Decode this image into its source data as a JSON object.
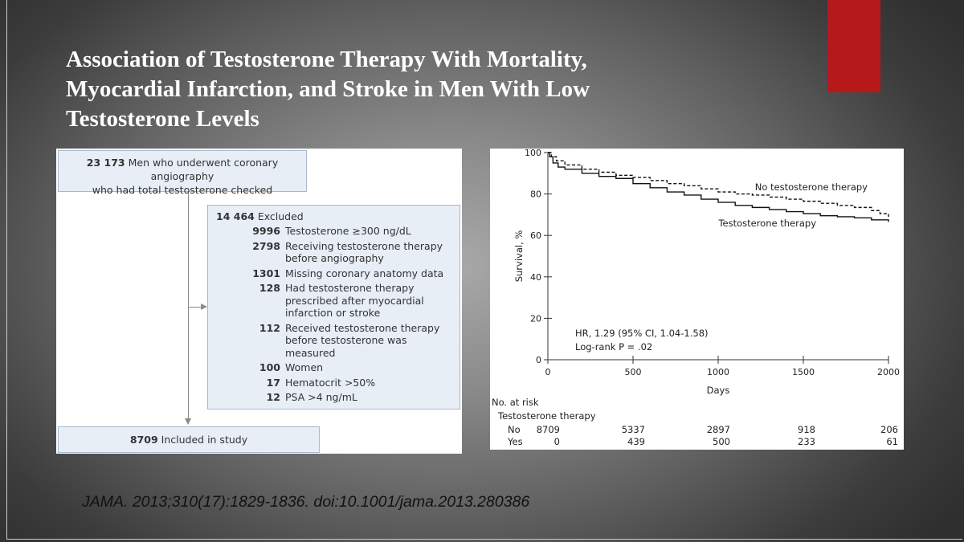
{
  "slide": {
    "title_lines": [
      "Association of Testosterone Therapy With Mortality,",
      "Myocardial Infarction, and Stroke in Men With Low",
      "Testosterone Levels"
    ],
    "accent_color": "#b5191a",
    "citation": "JAMA. 2013;310(17):1829-1836. doi:10.1001/jama.2013.280386"
  },
  "flow": {
    "top_box": {
      "count": "23 173",
      "line1": "Men who underwent coronary angiography",
      "line2": "who had total testosterone checked"
    },
    "excluded": {
      "count": "14 464",
      "label": "Excluded",
      "items": [
        {
          "n": "9996",
          "text": "Testosterone ≥300 ng/dL"
        },
        {
          "n": "2798",
          "text": "Receiving testosterone therapy before angiography"
        },
        {
          "n": "1301",
          "text": "Missing coronary anatomy data"
        },
        {
          "n": "128",
          "text": "Had testosterone therapy prescribed after myocardial infarction or stroke"
        },
        {
          "n": "112",
          "text": "Received testosterone therapy before testosterone was measured"
        },
        {
          "n": "100",
          "text": "Women"
        },
        {
          "n": "17",
          "text": "Hematocrit >50%"
        },
        {
          "n": "12",
          "text": "PSA >4 ng/mL"
        }
      ]
    },
    "included": {
      "count": "8709",
      "label": "Included in study"
    },
    "box_fill": "#e7eef6"
  },
  "chart_data": {
    "type": "line",
    "title": "",
    "xlabel": "Days",
    "ylabel": "Survival, %",
    "xlim": [
      0,
      2000
    ],
    "ylim": [
      0,
      100
    ],
    "x_ticks": [
      0,
      500,
      1000,
      1500,
      2000
    ],
    "y_ticks": [
      0,
      20,
      40,
      60,
      80,
      100
    ],
    "series": [
      {
        "name": "No testosterone therapy",
        "style": "dashed",
        "x": [
          0,
          20,
          50,
          100,
          200,
          300,
          400,
          500,
          600,
          700,
          800,
          900,
          1000,
          1100,
          1200,
          1300,
          1400,
          1500,
          1600,
          1700,
          1800,
          1900,
          1950,
          2000
        ],
        "y": [
          100,
          98,
          96,
          94,
          92,
          90.5,
          89,
          88,
          86.5,
          85,
          84,
          82.5,
          81,
          80,
          79.5,
          78.5,
          77.5,
          76.5,
          75.5,
          74.5,
          73.5,
          72,
          70.5,
          69
        ]
      },
      {
        "name": "Testosterone therapy",
        "style": "solid",
        "x": [
          0,
          10,
          30,
          60,
          100,
          200,
          300,
          400,
          500,
          600,
          700,
          800,
          900,
          1000,
          1100,
          1200,
          1300,
          1400,
          1500,
          1600,
          1700,
          1800,
          1900,
          2000
        ],
        "y": [
          100,
          98,
          95,
          93,
          92,
          90,
          88.5,
          87.5,
          85,
          83,
          81,
          79.5,
          77.5,
          76,
          74.5,
          73.5,
          72.5,
          71.5,
          70.5,
          69.5,
          69,
          68.5,
          67.5,
          66.5
        ]
      }
    ],
    "annotations": [
      "HR, 1.29 (95% CI, 1.04-1.58)",
      "Log-rank P = .02"
    ],
    "risk_table": {
      "title": "No. at risk",
      "subtitle": "Testosterone therapy",
      "rows": [
        {
          "label": "No",
          "values": [
            "8709",
            "5337",
            "2897",
            "918",
            "206"
          ]
        },
        {
          "label": "Yes",
          "values": [
            "0",
            "439",
            "500",
            "233",
            "61"
          ]
        }
      ]
    }
  }
}
